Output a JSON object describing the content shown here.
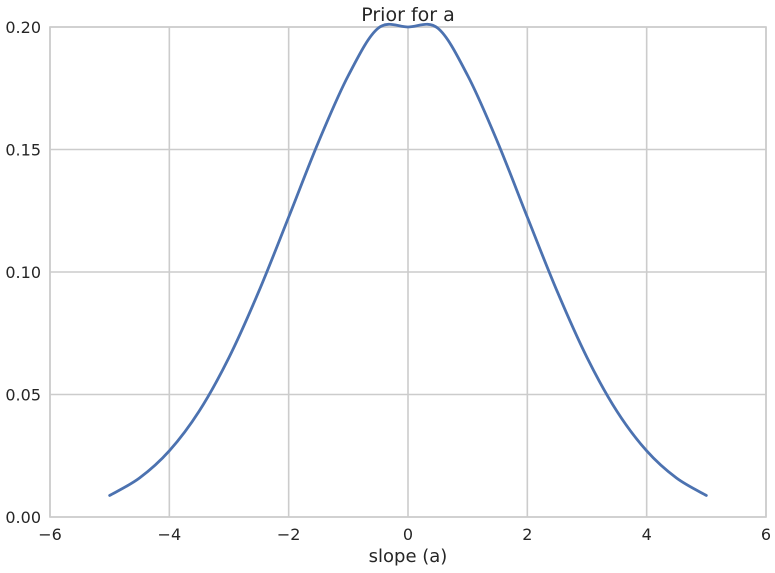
{
  "chart_data": {
    "type": "line",
    "title": "Prior for a",
    "xlabel": "slope (a)",
    "ylabel": "",
    "xlim": [
      -6,
      6
    ],
    "ylim": [
      0.0,
      0.2
    ],
    "xticks": [
      -6,
      -4,
      -2,
      0,
      2,
      4,
      6
    ],
    "xtick_labels": [
      "−6",
      "−4",
      "−2",
      "0",
      "2",
      "4",
      "6"
    ],
    "yticks": [
      0.0,
      0.05,
      0.1,
      0.15,
      0.2
    ],
    "ytick_labels": [
      "0.00",
      "0.05",
      "0.10",
      "0.15",
      "0.20"
    ],
    "grid": true,
    "series": [
      {
        "color": "#4c72b0",
        "x": [
          -5.0,
          -4.5,
          -4.0,
          -3.5,
          -3.0,
          -2.5,
          -2.0,
          -1.5,
          -1.0,
          -0.5,
          0.0,
          0.5,
          1.0,
          1.5,
          2.0,
          2.5,
          3.0,
          3.5,
          4.0,
          4.5,
          5.0
        ],
        "y": [
          0.0088,
          0.0159,
          0.027,
          0.0432,
          0.0651,
          0.0921,
          0.1224,
          0.1531,
          0.1802,
          0.1995,
          0.2,
          0.1995,
          0.1802,
          0.1531,
          0.1224,
          0.0921,
          0.0651,
          0.0432,
          0.027,
          0.0159,
          0.0088
        ]
      }
    ]
  }
}
